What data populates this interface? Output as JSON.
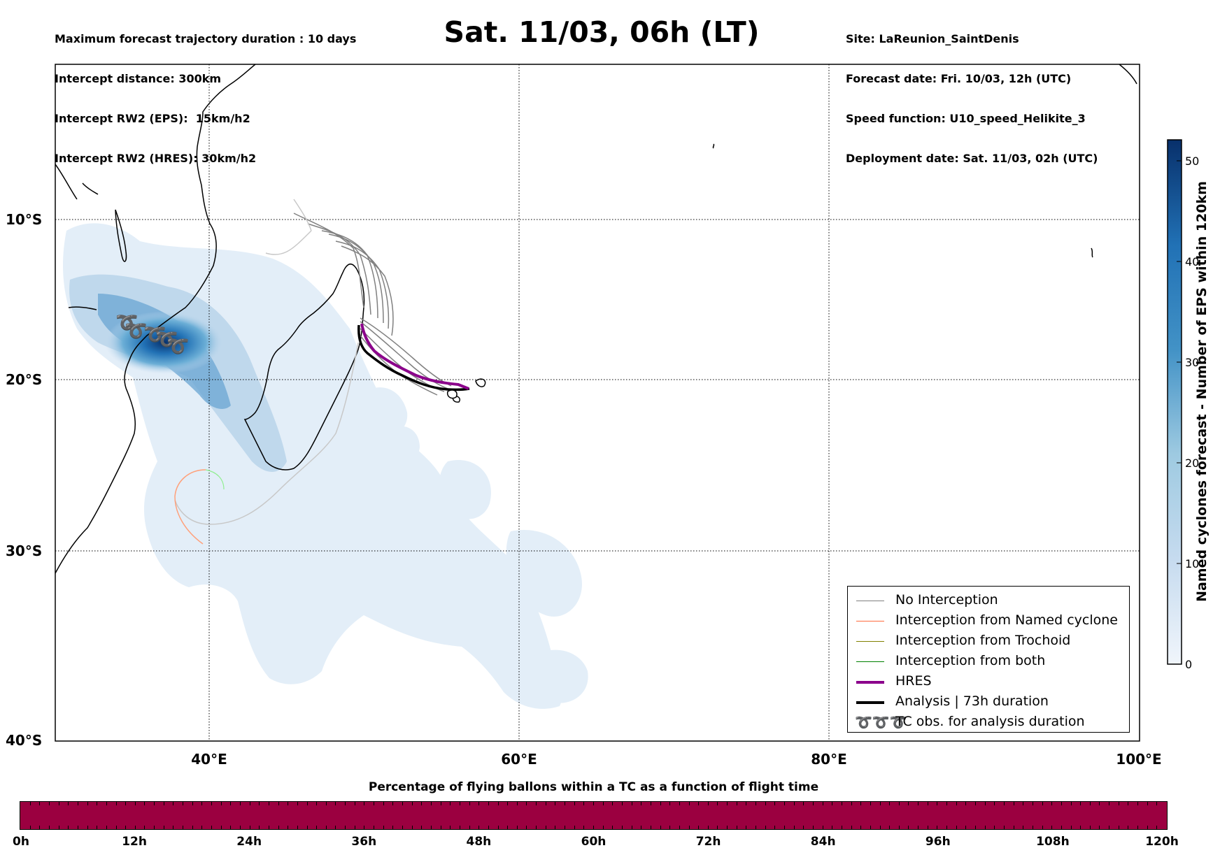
{
  "header_left": {
    "line1": "Maximum forecast trajectory duration : 10 days",
    "line2": "Intercept distance: 300km",
    "line3": "Intercept RW2 (EPS):  15km/h2",
    "line4": "Intercept RW2 (HRES): 30km/h2"
  },
  "title": "Sat. 11/03, 06h (LT)",
  "header_right": {
    "line1": "Site: LaReunion_SaintDenis",
    "line2": "Forecast date: Fri. 10/03, 12h (UTC)",
    "line3": "Speed function: U10_speed_Helikite_3",
    "line4": "Deployment date: Sat. 11/03, 02h (UTC)"
  },
  "map": {
    "lat_labels": [
      "10°S",
      "20°S",
      "30°S",
      "40°S"
    ],
    "lon_labels": [
      "40°E",
      "60°E",
      "80°E",
      "100°E"
    ],
    "lat_range": [
      -40,
      1
    ],
    "lon_range": [
      30,
      100
    ],
    "colors": {
      "no_interception": "#808080",
      "named_cyclone": "#ff6a3d",
      "trochoid": "#808000",
      "both": "#008000",
      "hres": "#8b008b",
      "analysis": "#000000",
      "density_light": "#e3eef8",
      "density_dark": "#08306b"
    }
  },
  "legend": {
    "no_interception": "No Interception",
    "named_cyclone": "Interception from Named cyclone",
    "trochoid": "Interception from Trochoid",
    "both": "Interception from both",
    "hres": "HRES",
    "analysis": "Analysis | 73h duration",
    "tc_obs": "TC obs. for analysis duration",
    "tc_obs_symbol": "➰➰➰"
  },
  "colorbar": {
    "label": "Named cyclones forecast - Number of EPS within 120km",
    "ticks": [
      "0",
      "10",
      "20",
      "30",
      "40",
      "50"
    ],
    "range": [
      0,
      52
    ]
  },
  "time_bar": {
    "title": "Percentage of flying ballons within a TC as a function of flight time",
    "fill_color": "#9b0040",
    "labels": [
      "0h",
      "12h",
      "24h",
      "36h",
      "48h",
      "60h",
      "72h",
      "84h",
      "96h",
      "108h",
      "120h"
    ]
  }
}
